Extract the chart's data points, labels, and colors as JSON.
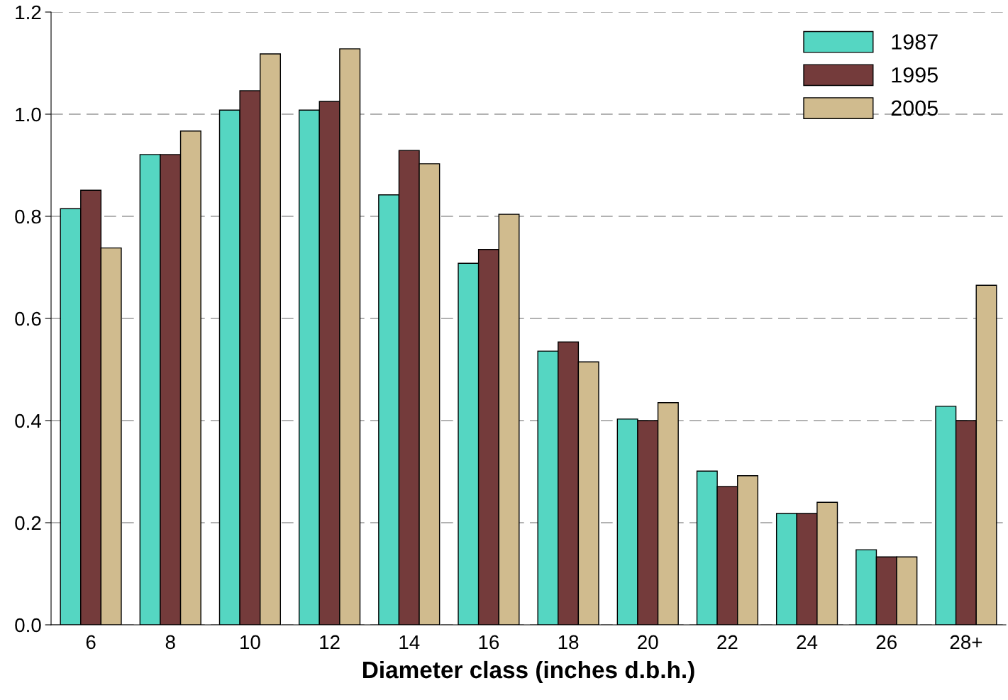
{
  "chart_data": {
    "type": "bar",
    "xlabel": "Diameter class (inches d.b.h.)",
    "categories": [
      "6",
      "8",
      "10",
      "12",
      "14",
      "16",
      "18",
      "20",
      "22",
      "24",
      "26",
      "28+"
    ],
    "series": [
      {
        "name": "1987",
        "color": "#55d6c2",
        "values": [
          0.815,
          0.921,
          1.008,
          1.008,
          0.842,
          0.708,
          0.536,
          0.403,
          0.301,
          0.218,
          0.147,
          0.428
        ]
      },
      {
        "name": "1995",
        "color": "#743b3b",
        "values": [
          0.851,
          0.921,
          1.046,
          1.025,
          0.929,
          0.735,
          0.554,
          0.4,
          0.271,
          0.218,
          0.133,
          0.4
        ]
      },
      {
        "name": "2005",
        "color": "#d0bb8e",
        "values": [
          0.738,
          0.967,
          1.118,
          1.128,
          0.903,
          0.804,
          0.515,
          0.435,
          0.292,
          0.24,
          0.133,
          0.665
        ]
      }
    ],
    "ylim": [
      0,
      1.2
    ],
    "yticks": [
      {
        "value": 0,
        "label": "0.0"
      },
      0.2,
      0.4,
      0.6,
      0.8,
      {
        "value": 1,
        "label": "1.0"
      },
      1.2
    ],
    "grid": "y",
    "legend": "top right"
  }
}
